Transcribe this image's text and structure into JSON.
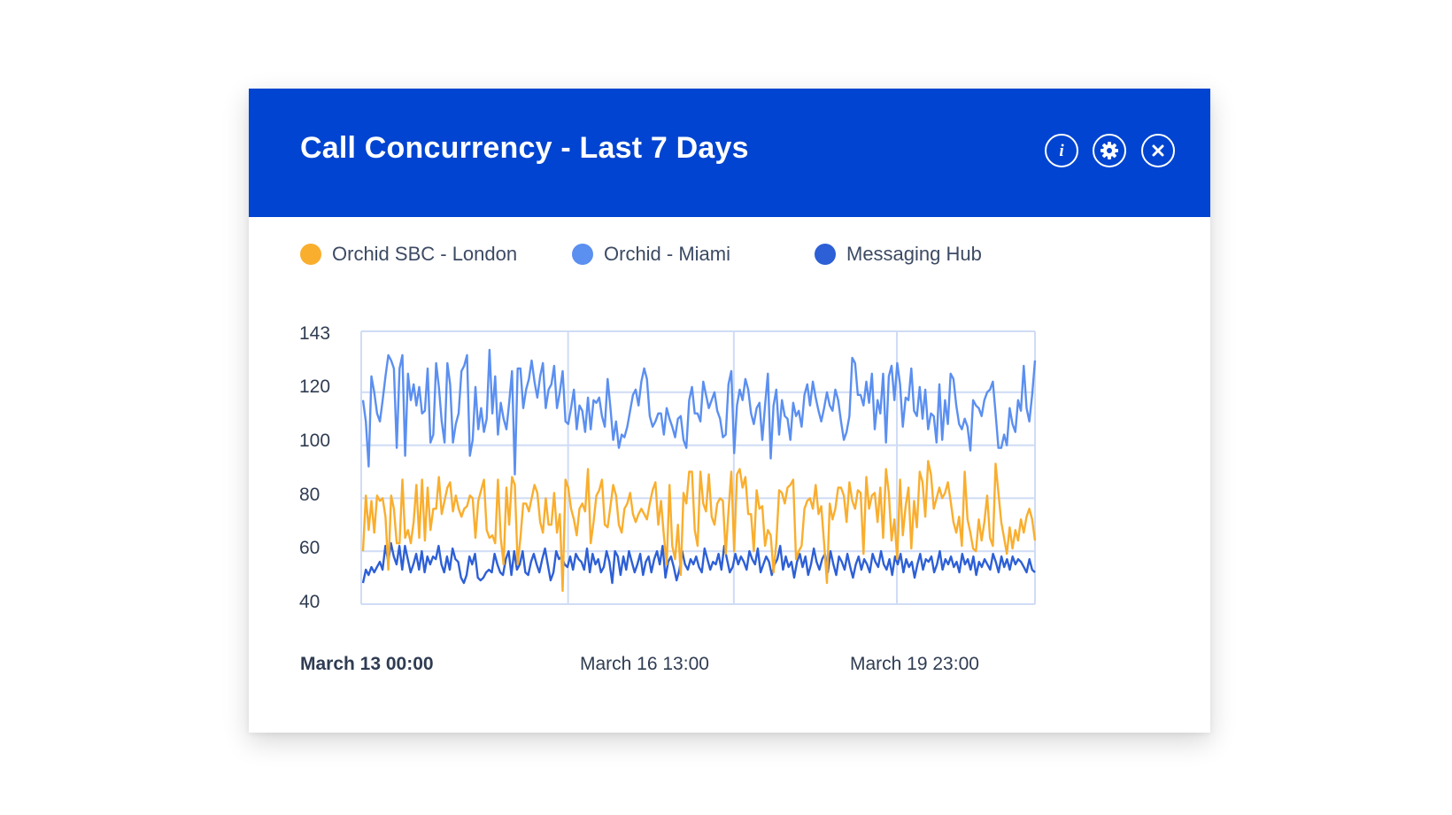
{
  "widget": {
    "title": "Call Concurrency - Last 7 Days",
    "header_color": "#0044d1",
    "buttons": [
      {
        "name": "info-icon"
      },
      {
        "name": "gear-icon"
      },
      {
        "name": "close-icon"
      }
    ]
  },
  "legend": [
    {
      "label": "Orchid SBC - London",
      "color": "#f9ae2e"
    },
    {
      "label": "Orchid - Miami",
      "color": "#5b8ff0"
    },
    {
      "label": "Messaging Hub",
      "color": "#2d5fd6"
    }
  ],
  "chart_data": {
    "type": "line",
    "title": "",
    "xlabel": "",
    "ylabel": "",
    "ylim": [
      40,
      143
    ],
    "y_ticks": [
      "143",
      "120",
      "100",
      "80",
      "60",
      "40"
    ],
    "x_ticks": [
      "March 13 00:00",
      "March 16 13:00",
      "March 19 23:00"
    ],
    "grid": true,
    "legend_position": "top",
    "series": [
      {
        "name": "Orchid SBC - London",
        "color": "#f9ae2e",
        "values": [
          60,
          81,
          68,
          79,
          67,
          81,
          79,
          80,
          73,
          53,
          81,
          76,
          63,
          63,
          87,
          65,
          68,
          63,
          71,
          85,
          65,
          87,
          64,
          84,
          68,
          76,
          76,
          88,
          74,
          79,
          84,
          86,
          75,
          81,
          76,
          73,
          76,
          77,
          81,
          80,
          65,
          79,
          83,
          87,
          68,
          65,
          66,
          63,
          87,
          65,
          55,
          84,
          70,
          88,
          85,
          55,
          65,
          78,
          78,
          75,
          80,
          85,
          82,
          71,
          67,
          80,
          70,
          70,
          82,
          67,
          74,
          45,
          87,
          84,
          76,
          72,
          66,
          76,
          78,
          75,
          91,
          63,
          71,
          81,
          83,
          87,
          70,
          69,
          77,
          85,
          81,
          70,
          67,
          76,
          78,
          82,
          74,
          71,
          74,
          76,
          74,
          72,
          78,
          83,
          86,
          70,
          79,
          66,
          55,
          85,
          62,
          57,
          70,
          51,
          82,
          78,
          90,
          90,
          68,
          62,
          90,
          78,
          75,
          89,
          73,
          70,
          78,
          80,
          79,
          59,
          75,
          90,
          60,
          89,
          91,
          84,
          88,
          74,
          74,
          60,
          83,
          76,
          77,
          62,
          68,
          66,
          52,
          63,
          83,
          82,
          78,
          84,
          85,
          87,
          57,
          60,
          62,
          76,
          79,
          80,
          76,
          85,
          74,
          77,
          63,
          48,
          78,
          72,
          76,
          84,
          84,
          81,
          71,
          86,
          79,
          76,
          83,
          82,
          59,
          88,
          76,
          81,
          82,
          71,
          84,
          65,
          91,
          82,
          64,
          72,
          57,
          87,
          66,
          77,
          84,
          61,
          79,
          69,
          90,
          86,
          73,
          94,
          89,
          76,
          80,
          84,
          80,
          82,
          86,
          79,
          71,
          67,
          73,
          62,
          90,
          72,
          67,
          61,
          60,
          72,
          64,
          71,
          81,
          65,
          62,
          93,
          82,
          71,
          65,
          59,
          69,
          61,
          68,
          64,
          72,
          67,
          73,
          76,
          72,
          64
        ]
      },
      {
        "name": "Orchid - Miami",
        "color": "#5b8ff0",
        "values": [
          117,
          109,
          92,
          126,
          120,
          112,
          109,
          117,
          126,
          134,
          132,
          129,
          99,
          129,
          134,
          96,
          127,
          117,
          123,
          115,
          122,
          112,
          113,
          129,
          101,
          104,
          131,
          122,
          109,
          101,
          131,
          123,
          101,
          108,
          112,
          128,
          130,
          134,
          96,
          102,
          122,
          106,
          114,
          105,
          110,
          136,
          112,
          126,
          104,
          116,
          110,
          106,
          116,
          128,
          89,
          129,
          129,
          114,
          121,
          125,
          132,
          124,
          118,
          126,
          131,
          114,
          121,
          123,
          130,
          114,
          120,
          128,
          109,
          108,
          114,
          121,
          106,
          115,
          113,
          105,
          118,
          106,
          117,
          116,
          118,
          111,
          107,
          125,
          114,
          102,
          109,
          99,
          104,
          103,
          107,
          113,
          119,
          121,
          115,
          124,
          129,
          125,
          111,
          107,
          109,
          112,
          112,
          104,
          114,
          110,
          107,
          103,
          110,
          111,
          102,
          99,
          117,
          122,
          112,
          112,
          109,
          124,
          119,
          114,
          117,
          120,
          113,
          110,
          103,
          104,
          123,
          128,
          97,
          115,
          121,
          117,
          125,
          121,
          112,
          108,
          114,
          116,
          102,
          115,
          127,
          95,
          115,
          121,
          104,
          117,
          111,
          110,
          102,
          116,
          111,
          113,
          107,
          119,
          123,
          115,
          124,
          118,
          113,
          109,
          114,
          120,
          115,
          113,
          121,
          117,
          109,
          102,
          105,
          111,
          133,
          131,
          119,
          119,
          115,
          124,
          116,
          127,
          106,
          117,
          112,
          127,
          101,
          126,
          130,
          117,
          131,
          123,
          107,
          118,
          117,
          129,
          113,
          111,
          122,
          110,
          121,
          106,
          112,
          111,
          101,
          123,
          102,
          117,
          108,
          127,
          125,
          115,
          108,
          106,
          110,
          107,
          98,
          117,
          115,
          114,
          111,
          117,
          120,
          121,
          124,
          112,
          99,
          99,
          104,
          100,
          114,
          108,
          105,
          117,
          113,
          130,
          114,
          109,
          119,
          132
        ]
      },
      {
        "name": "Messaging Hub",
        "color": "#2d5fd6",
        "values": [
          48,
          53,
          51,
          54,
          52,
          54,
          56,
          53,
          62,
          56,
          63,
          58,
          55,
          62,
          53,
          62,
          57,
          52,
          55,
          59,
          53,
          60,
          52,
          58,
          55,
          58,
          57,
          62,
          55,
          52,
          58,
          53,
          61,
          57,
          56,
          50,
          48,
          51,
          58,
          55,
          59,
          50,
          49,
          50,
          52,
          53,
          52,
          59,
          55,
          52,
          51,
          57,
          60,
          51,
          60,
          53,
          55,
          60,
          52,
          51,
          56,
          59,
          55,
          52,
          57,
          61,
          55,
          49,
          52,
          60,
          57,
          58,
          55,
          54,
          58,
          53,
          59,
          57,
          56,
          53,
          61,
          52,
          59,
          55,
          57,
          52,
          54,
          60,
          56,
          48,
          60,
          58,
          51,
          58,
          53,
          60,
          56,
          52,
          55,
          59,
          51,
          56,
          58,
          52,
          57,
          60,
          55,
          62,
          50,
          56,
          58,
          54,
          49,
          53,
          60,
          55,
          53,
          57,
          55,
          58,
          54,
          52,
          61,
          57,
          53,
          56,
          55,
          59,
          53,
          62,
          57,
          52,
          54,
          59,
          55,
          58,
          56,
          53,
          60,
          57,
          55,
          61,
          52,
          55,
          58,
          56,
          51,
          55,
          57,
          62,
          53,
          58,
          54,
          56,
          50,
          56,
          59,
          54,
          58,
          51,
          55,
          61,
          56,
          53,
          57,
          59,
          52,
          60,
          55,
          51,
          58,
          56,
          53,
          59,
          54,
          50,
          55,
          58,
          53,
          57,
          55,
          52,
          59,
          56,
          54,
          60,
          55,
          53,
          57,
          51,
          58,
          55,
          59,
          52,
          57,
          54,
          56,
          50,
          55,
          59,
          53,
          57,
          56,
          58,
          52,
          55,
          60,
          53,
          57,
          55,
          58,
          54,
          56,
          52,
          59,
          55,
          57,
          53,
          58,
          51,
          56,
          54,
          57,
          55,
          53,
          59,
          56,
          52,
          58,
          54,
          57,
          53,
          58,
          55,
          57,
          56,
          54,
          52,
          57,
          53,
          52
        ]
      }
    ]
  }
}
